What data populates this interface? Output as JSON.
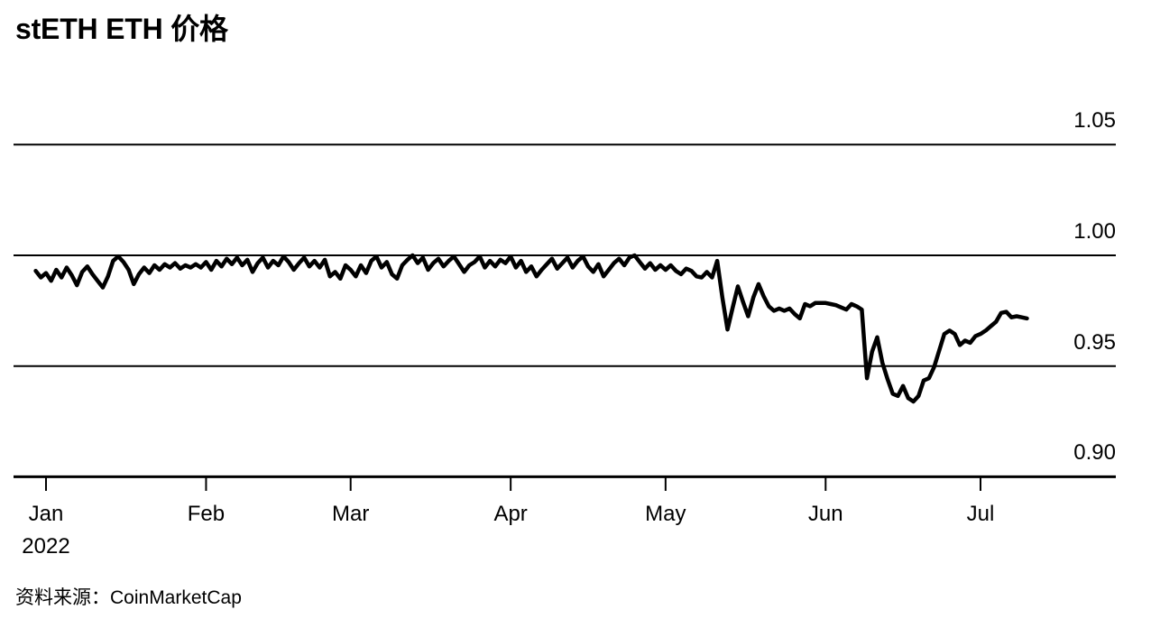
{
  "title": "stETH ETH 价格",
  "source": {
    "label": "资料来源：",
    "name": "CoinMarketCap"
  },
  "chart_data": {
    "type": "line",
    "title": "stETH ETH 价格",
    "series_name": "stETH/ETH price",
    "line_color": "#000000",
    "background_color": "#ffffff",
    "grid": "horizontal",
    "legend_position": "none",
    "x_axis": {
      "start": "2021-12-30",
      "end": "2022-07-10",
      "frequency": "daily"
    },
    "x_tick_labels": [
      "Jan",
      "Feb",
      "Mar",
      "Apr",
      "May",
      "Jun",
      "Jul"
    ],
    "x_tick_year_label": "2022",
    "y_ticks": [
      {
        "value": 1.05,
        "label": "1.05"
      },
      {
        "value": 1.0,
        "label": "1.00"
      },
      {
        "value": 0.95,
        "label": "0.95"
      },
      {
        "value": 0.9,
        "label": "0.90"
      }
    ],
    "ylim": [
      0.895,
      1.055
    ],
    "start_offset_days": -2,
    "values": [
      0.993,
      0.99,
      0.992,
      0.9885,
      0.9935,
      0.99,
      0.9945,
      0.991,
      0.9865,
      0.9925,
      0.995,
      0.9915,
      0.9885,
      0.9855,
      0.9905,
      0.9975,
      0.9995,
      0.997,
      0.9935,
      0.987,
      0.9915,
      0.9945,
      0.992,
      0.9955,
      0.9935,
      0.996,
      0.9945,
      0.9965,
      0.994,
      0.9955,
      0.9945,
      0.996,
      0.9945,
      0.997,
      0.9935,
      0.9975,
      0.995,
      0.9985,
      0.996,
      0.999,
      0.9955,
      0.998,
      0.9925,
      0.9965,
      0.999,
      0.9945,
      0.9975,
      0.9955,
      0.9995,
      0.997,
      0.9935,
      0.9965,
      0.999,
      0.995,
      0.9975,
      0.9945,
      0.998,
      0.9905,
      0.9925,
      0.9895,
      0.9955,
      0.9935,
      0.9905,
      0.9955,
      0.992,
      0.9975,
      0.9995,
      0.9945,
      0.997,
      0.9915,
      0.9895,
      0.9955,
      0.998,
      1.0,
      0.9965,
      0.999,
      0.9935,
      0.9965,
      0.9985,
      0.995,
      0.9975,
      0.9995,
      0.996,
      0.9925,
      0.9955,
      0.997,
      0.9995,
      0.9945,
      0.9975,
      0.995,
      0.998,
      0.9965,
      0.9995,
      0.9945,
      0.9975,
      0.9925,
      0.995,
      0.9905,
      0.9935,
      0.996,
      0.9985,
      0.994,
      0.9965,
      0.999,
      0.9945,
      0.9975,
      0.9995,
      0.995,
      0.9925,
      0.996,
      0.9905,
      0.9935,
      0.9965,
      0.9985,
      0.9955,
      0.999,
      1.0,
      0.997,
      0.994,
      0.9965,
      0.9935,
      0.9955,
      0.9935,
      0.9955,
      0.993,
      0.9915,
      0.994,
      0.993,
      0.9905,
      0.99,
      0.9925,
      0.99,
      0.9975,
      0.981,
      0.9665,
      0.9765,
      0.986,
      0.979,
      0.9725,
      0.981,
      0.987,
      0.9815,
      0.977,
      0.975,
      0.976,
      0.975,
      0.976,
      0.9735,
      0.9715,
      0.978,
      0.977,
      0.9785,
      0.9785,
      0.9785,
      0.978,
      0.9775,
      0.9765,
      0.9755,
      0.978,
      0.977,
      0.9755,
      0.9445,
      0.9565,
      0.963,
      0.9515,
      0.944,
      0.9375,
      0.9365,
      0.941,
      0.9355,
      0.934,
      0.9365,
      0.9435,
      0.9445,
      0.9495,
      0.957,
      0.9645,
      0.966,
      0.9645,
      0.9595,
      0.9615,
      0.9605,
      0.9635,
      0.9645,
      0.966,
      0.968,
      0.97,
      0.974,
      0.9745,
      0.972,
      0.9725,
      0.972,
      0.9715
    ]
  }
}
